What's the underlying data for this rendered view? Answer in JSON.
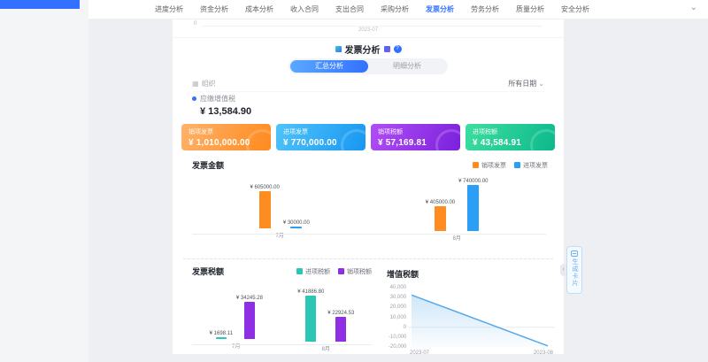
{
  "nav": {
    "tabs": [
      {
        "label": "进度分析",
        "active": false
      },
      {
        "label": "资金分析",
        "active": false
      },
      {
        "label": "成本分析",
        "active": false
      },
      {
        "label": "收入合同",
        "active": false
      },
      {
        "label": "支出合同",
        "active": false
      },
      {
        "label": "采购分析",
        "active": false
      },
      {
        "label": "发票分析",
        "active": true
      },
      {
        "label": "劳务分析",
        "active": false
      },
      {
        "label": "质量分析",
        "active": false
      },
      {
        "label": "安全分析",
        "active": false
      }
    ]
  },
  "icons": {
    "chevron_down": "⌄",
    "org": "▦",
    "help": "?"
  },
  "scrolled_chart": {
    "ytick": "0",
    "xlabel": "2023-07"
  },
  "page": {
    "title": "发票分析"
  },
  "toggle": {
    "options": [
      {
        "label": "汇总分析",
        "active": true
      },
      {
        "label": "明细分析",
        "active": false
      }
    ]
  },
  "filter": {
    "org_label": "组织",
    "date_label": "所有日期"
  },
  "summary": {
    "vat_label": "应缴增值税",
    "vat_value": "¥ 13,584.90"
  },
  "stat_cards": [
    {
      "label": "销项发票",
      "value": "¥ 1,010,000.00",
      "color_from": "#ffb269",
      "color_to": "#ff8a1e"
    },
    {
      "label": "进项发票",
      "value": "¥ 770,000.00",
      "color_from": "#4fc3f9",
      "color_to": "#1897f2"
    },
    {
      "label": "销项税额",
      "value": "¥ 57,169.81",
      "color_from": "#b14ef5",
      "color_to": "#7b21dc"
    },
    {
      "label": "进项税额",
      "value": "¥ 43,584.91",
      "color_from": "#3ede9f",
      "color_to": "#0cb98c"
    }
  ],
  "chart_data": [
    {
      "type": "bar",
      "title": "发票金额",
      "categories": [
        "7月",
        "8月"
      ],
      "series": [
        {
          "name": "销项发票",
          "color": "#ff8c20",
          "values": [
            605000,
            405000
          ],
          "labels": [
            "¥ 605000.00",
            "¥ 405000.00"
          ]
        },
        {
          "name": "进项发票",
          "color": "#2b9ff5",
          "values": [
            30000,
            740000
          ],
          "labels": [
            "¥ 30000.00",
            "¥ 740000.00"
          ]
        }
      ],
      "ylim": [
        0,
        740000
      ],
      "legend_position": "top-right",
      "grid": false
    },
    {
      "type": "bar",
      "title": "发票税额",
      "categories": [
        "7月",
        "8月"
      ],
      "series": [
        {
          "name": "进项税额",
          "color": "#2bc7b4",
          "values": [
            1698.11,
            41886.8
          ],
          "labels": [
            "¥ 1698.11",
            "¥ 41886.80"
          ]
        },
        {
          "name": "销项税额",
          "color": "#8f2fe4",
          "values": [
            34245.28,
            22924.53
          ],
          "labels": [
            "¥ 34245.28",
            "¥ 22924.53"
          ]
        }
      ],
      "ylim": [
        0,
        41886.8
      ],
      "legend_position": "top-right",
      "grid": false
    },
    {
      "type": "line",
      "title": "增值税额",
      "x": [
        "2023-07",
        "2023-08"
      ],
      "values": [
        32547.17,
        -18962.27
      ],
      "color": "#56a8e8",
      "area": true,
      "ylim": [
        -20000,
        40000
      ],
      "yticks": [
        "40,000",
        "30,000",
        "20,000",
        "10,000",
        "0",
        "-10,000",
        "-20,000"
      ],
      "legend_position": "none",
      "grid": false
    }
  ],
  "floating_button": {
    "label": "生成卡片"
  }
}
